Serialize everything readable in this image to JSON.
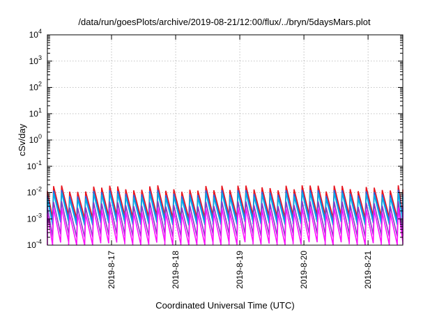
{
  "chart_data": {
    "type": "line",
    "title": "/data/run/goesPlots/archive/2019-08-21/12:00/flux/../bryn/5daysMars.plot",
    "xlabel": "Coordinated Universal Time (UTC)",
    "ylabel": "cSv/day",
    "yscale": "log",
    "ylim": [
      0.0001,
      10000
    ],
    "xlim": [
      "2019-08-16 00:00",
      "2019-08-21 13:00"
    ],
    "grid": true,
    "x_ticks": [
      {
        "date": "2019-08-17",
        "label": "2019-8-17"
      },
      {
        "date": "2019-08-18",
        "label": "2019-8-18"
      },
      {
        "date": "2019-08-19",
        "label": "2019-8-19"
      },
      {
        "date": "2019-08-20",
        "label": "2019-8-20"
      },
      {
        "date": "2019-08-21",
        "label": "2019-8-21"
      }
    ],
    "y_ticks": [
      {
        "value": 0.0001,
        "base": "10",
        "exp": "-4"
      },
      {
        "value": 0.001,
        "base": "10",
        "exp": "-3"
      },
      {
        "value": 0.01,
        "base": "10",
        "exp": "-2"
      },
      {
        "value": 0.1,
        "base": "10",
        "exp": "-1"
      },
      {
        "value": 1,
        "base": "10",
        "exp": "0"
      },
      {
        "value": 10,
        "base": "10",
        "exp": "1"
      },
      {
        "value": 100,
        "base": "10",
        "exp": "2"
      },
      {
        "value": 1000,
        "base": "10",
        "exp": "3"
      },
      {
        "value": 10000,
        "base": "10",
        "exp": "4"
      }
    ],
    "sawtooth_period_hours": 3,
    "series": [
      {
        "color": "#e8141e",
        "peak": 0.014,
        "trough": 0.0013
      },
      {
        "color": "#2a60e0",
        "peak": 0.0095,
        "trough": 0.0009
      },
      {
        "color": "#00b0e8",
        "peak": 0.0075,
        "trough": 0.0007
      },
      {
        "color": "#8a38c8",
        "peak": 0.0035,
        "trough": 0.00025
      },
      {
        "color": "#ff10ff",
        "peak": 0.002,
        "trough": 0.00012
      }
    ]
  }
}
